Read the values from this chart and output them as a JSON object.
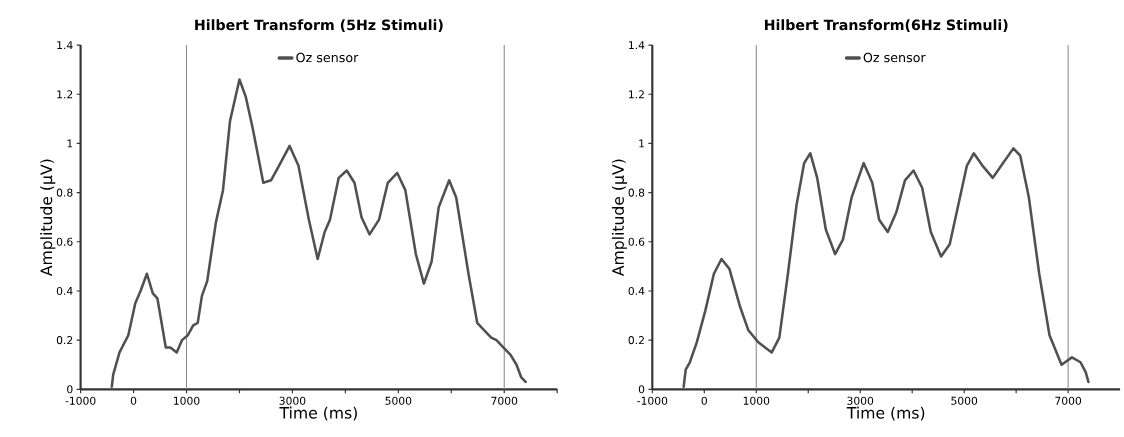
{
  "chart_data": [
    {
      "type": "line",
      "title": "Hilbert Transform (5Hz Stimuli)",
      "xlabel": "Time (ms)",
      "ylabel": "Amplitude (μV)",
      "xlim": [
        -1000,
        8000
      ],
      "ylim": [
        0,
        1.4
      ],
      "xticks": [
        -1000,
        0,
        1000,
        {
          "value": 2000,
          "label": null
        },
        3000,
        {
          "value": 4000,
          "label": null
        },
        5000,
        {
          "value": 6000,
          "label": null
        },
        7000,
        {
          "value": 8000,
          "label": null
        }
      ],
      "yticks": [
        0,
        0.2,
        0.4,
        0.6,
        0.8,
        1,
        1.2,
        1.4
      ],
      "grid": false,
      "legend": "top",
      "marker": "none",
      "line_style": "solid",
      "ref_lines": [
        {
          "axis": "x",
          "value": 1000,
          "color": "#8c8c8c"
        },
        {
          "axis": "x",
          "value": 7000,
          "color": "#8c8c8c"
        }
      ],
      "series": [
        {
          "name": "Oz sensor",
          "color": "#505050",
          "x": [
            -411,
            -384,
            -265,
            -99,
            33,
            132,
            252,
            364,
            450,
            530,
            609,
            695,
            815,
            914,
            1026,
            1126,
            1212,
            1291,
            1391,
            1556,
            1689,
            1821,
            2000,
            2119,
            2252,
            2450,
            2596,
            2748,
            2947,
            3113,
            3311,
            3477,
            3609,
            3709,
            3874,
            4026,
            4172,
            4305,
            4457,
            4636,
            4801,
            4980,
            5132,
            5331,
            5483,
            5629,
            5762,
            5960,
            6093,
            6325,
            6490,
            6623,
            6755,
            6854,
            6987,
            7119,
            7232,
            7318,
            7404
          ],
          "values": [
            0.01,
            0.06,
            0.15,
            0.22,
            0.35,
            0.4,
            0.47,
            0.39,
            0.37,
            0.27,
            0.17,
            0.17,
            0.15,
            0.2,
            0.22,
            0.26,
            0.27,
            0.38,
            0.44,
            0.68,
            0.81,
            1.09,
            1.26,
            1.19,
            1.06,
            0.84,
            0.85,
            0.91,
            0.99,
            0.91,
            0.69,
            0.53,
            0.64,
            0.69,
            0.86,
            0.89,
            0.84,
            0.7,
            0.63,
            0.69,
            0.84,
            0.88,
            0.81,
            0.55,
            0.43,
            0.52,
            0.74,
            0.85,
            0.78,
            0.47,
            0.27,
            0.24,
            0.21,
            0.2,
            0.17,
            0.14,
            0.1,
            0.05,
            0.03
          ]
        }
      ]
    },
    {
      "type": "line",
      "title": "Hilbert Transform(6Hz Stimuli)",
      "xlabel": "Time (ms)",
      "ylabel": "Amplitude (μV)",
      "xlim": [
        -1000,
        8000
      ],
      "ylim": [
        0,
        1.4
      ],
      "xticks": [
        -1000,
        0,
        1000,
        {
          "value": 2000,
          "label": null
        },
        3000,
        {
          "value": 4000,
          "label": null
        },
        5000,
        {
          "value": 6000,
          "label": null
        },
        7000
      ],
      "yticks": [
        0,
        0.2,
        0.4,
        0.6,
        0.8,
        1,
        1.2,
        1.4
      ],
      "grid": false,
      "legend": "top",
      "marker": "none",
      "line_style": "solid",
      "ref_lines": [
        {
          "axis": "x",
          "value": 1000,
          "color": "#8c8c8c"
        },
        {
          "axis": "x",
          "value": 7000,
          "color": "#8c8c8c"
        }
      ],
      "series": [
        {
          "name": "Oz sensor",
          "color": "#505050",
          "x": [
            -397,
            -358,
            -278,
            -146,
            20,
            185,
            331,
            483,
            682,
            848,
            1046,
            1298,
            1444,
            1609,
            1775,
            1921,
            2040,
            2172,
            2338,
            2517,
            2669,
            2834,
            3066,
            3232,
            3364,
            3530,
            3695,
            3861,
            4026,
            4192,
            4358,
            4556,
            4722,
            4887,
            5053,
            5185,
            5351,
            5550,
            5715,
            5947,
            6079,
            6245,
            6444,
            6642,
            6874,
            7073,
            7238,
            7338,
            7391
          ],
          "values": [
            0.01,
            0.08,
            0.11,
            0.19,
            0.32,
            0.47,
            0.53,
            0.49,
            0.34,
            0.24,
            0.19,
            0.15,
            0.21,
            0.47,
            0.75,
            0.92,
            0.96,
            0.86,
            0.65,
            0.55,
            0.61,
            0.78,
            0.92,
            0.84,
            0.69,
            0.64,
            0.72,
            0.85,
            0.89,
            0.82,
            0.64,
            0.54,
            0.59,
            0.75,
            0.91,
            0.96,
            0.91,
            0.86,
            0.91,
            0.98,
            0.95,
            0.78,
            0.47,
            0.22,
            0.1,
            0.13,
            0.11,
            0.07,
            0.03
          ]
        }
      ]
    }
  ]
}
